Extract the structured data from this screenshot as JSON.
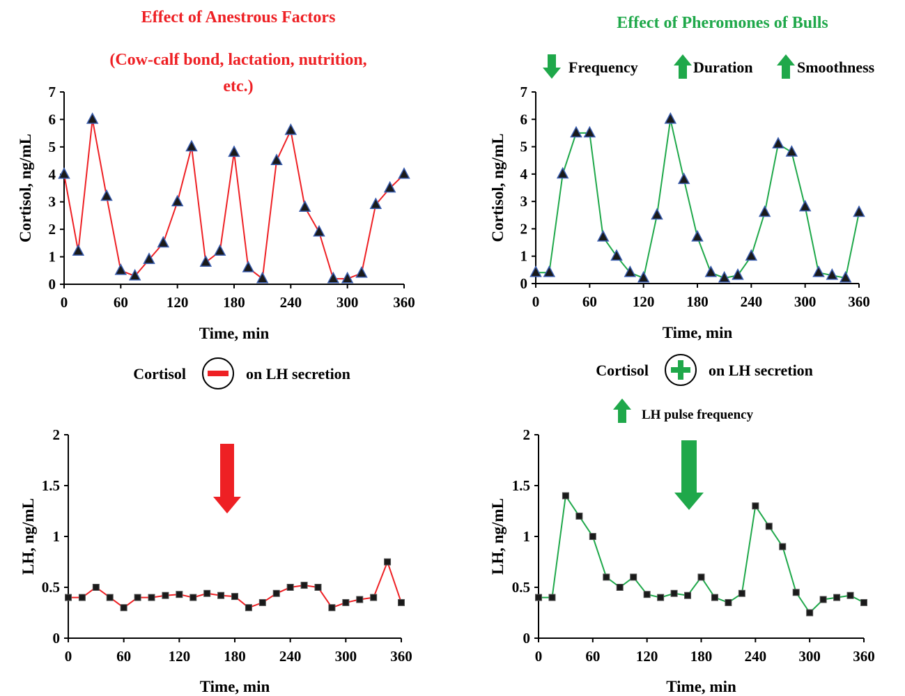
{
  "colors": {
    "red": "#ee2024",
    "green": "#1fa84a",
    "marker_fill": "#1a1a1a",
    "marker_edge": "#3a5dae",
    "axis": "#000000"
  },
  "left_title_line1": "Effect of Anestrous Factors",
  "left_title_line2": "(Cow-calf bond, lactation, nutrition,",
  "left_title_line3": "etc.)",
  "right_title": "Effect of Pheromones of Bulls",
  "right_effects": {
    "frequency": "Frequency",
    "duration": "Duration",
    "smoothness": "Smoothness"
  },
  "left_effect": {
    "prefix": "Cortisol",
    "sign": "minus",
    "suffix": "on LH secretion"
  },
  "right_effect": {
    "prefix": "Cortisol",
    "sign": "plus",
    "suffix": "on LH secretion"
  },
  "lh_pulse_label": "LH pulse frequency",
  "chart_data": [
    {
      "type": "line",
      "ylabel": "Cortisol, ng/mL",
      "xlabel": "Time, min",
      "marker": "triangle",
      "color": "red",
      "xlim": [
        0,
        360
      ],
      "ylim": [
        0,
        7
      ],
      "xticks": [
        0,
        60,
        120,
        180,
        240,
        300,
        360
      ],
      "yticks": [
        0,
        1,
        2,
        3,
        4,
        5,
        6,
        7
      ],
      "x": [
        0,
        15,
        30,
        45,
        60,
        75,
        90,
        105,
        120,
        135,
        150,
        165,
        180,
        195,
        210,
        225,
        240,
        255,
        270,
        285,
        300,
        315,
        330,
        345,
        360
      ],
      "y": [
        4,
        1.2,
        6,
        3.2,
        0.5,
        0.3,
        0.9,
        1.5,
        3,
        5,
        0.8,
        1.2,
        4.8,
        0.6,
        0.2,
        4.5,
        5.6,
        2.8,
        1.9,
        0.2,
        0.2,
        0.4,
        2.9,
        3.5,
        4
      ]
    },
    {
      "type": "line",
      "ylabel": "Cortisol, ng/mL",
      "xlabel": "Time, min",
      "marker": "triangle",
      "color": "green",
      "xlim": [
        0,
        360
      ],
      "ylim": [
        0,
        7
      ],
      "xticks": [
        0,
        60,
        120,
        180,
        240,
        300,
        360
      ],
      "yticks": [
        0,
        1,
        2,
        3,
        4,
        5,
        6,
        7
      ],
      "x": [
        0,
        15,
        30,
        45,
        60,
        75,
        90,
        105,
        120,
        135,
        150,
        165,
        180,
        195,
        210,
        225,
        240,
        255,
        270,
        285,
        300,
        315,
        330,
        345,
        360
      ],
      "y": [
        0.4,
        0.4,
        4,
        5.5,
        5.5,
        1.7,
        1,
        0.4,
        0.2,
        2.5,
        6,
        3.8,
        1.7,
        0.4,
        0.2,
        0.3,
        1,
        2.6,
        5.1,
        4.8,
        2.8,
        0.4,
        0.3,
        0.2,
        2.6
      ]
    },
    {
      "type": "line",
      "ylabel": "LH, ng/mL",
      "xlabel": "Time, min",
      "marker": "square",
      "color": "red",
      "xlim": [
        0,
        360
      ],
      "ylim": [
        0,
        2
      ],
      "xticks": [
        0,
        60,
        120,
        180,
        240,
        300,
        360
      ],
      "yticks": [
        0,
        0.5,
        1,
        1.5,
        2
      ],
      "x": [
        0,
        15,
        30,
        45,
        60,
        75,
        90,
        105,
        120,
        135,
        150,
        165,
        180,
        195,
        210,
        225,
        240,
        255,
        270,
        285,
        300,
        315,
        330,
        345,
        360
      ],
      "y": [
        0.4,
        0.4,
        0.5,
        0.4,
        0.3,
        0.4,
        0.4,
        0.42,
        0.43,
        0.4,
        0.44,
        0.42,
        0.41,
        0.3,
        0.35,
        0.44,
        0.5,
        0.52,
        0.5,
        0.3,
        0.35,
        0.38,
        0.4,
        0.75,
        0.35
      ]
    },
    {
      "type": "line",
      "ylabel": "LH, ng/mL",
      "xlabel": "Time, min",
      "marker": "square",
      "color": "green",
      "xlim": [
        0,
        360
      ],
      "ylim": [
        0,
        2
      ],
      "xticks": [
        0,
        60,
        120,
        180,
        240,
        300,
        360
      ],
      "yticks": [
        0,
        0.5,
        1,
        1.5,
        2
      ],
      "x": [
        0,
        15,
        30,
        45,
        60,
        75,
        90,
        105,
        120,
        135,
        150,
        165,
        180,
        195,
        210,
        225,
        240,
        255,
        270,
        285,
        300,
        315,
        330,
        345,
        360
      ],
      "y": [
        0.4,
        0.4,
        1.4,
        1.2,
        1,
        0.6,
        0.5,
        0.6,
        0.43,
        0.4,
        0.44,
        0.42,
        0.6,
        0.4,
        0.35,
        0.44,
        1.3,
        1.1,
        0.9,
        0.45,
        0.25,
        0.38,
        0.4,
        0.42,
        0.35
      ]
    }
  ]
}
